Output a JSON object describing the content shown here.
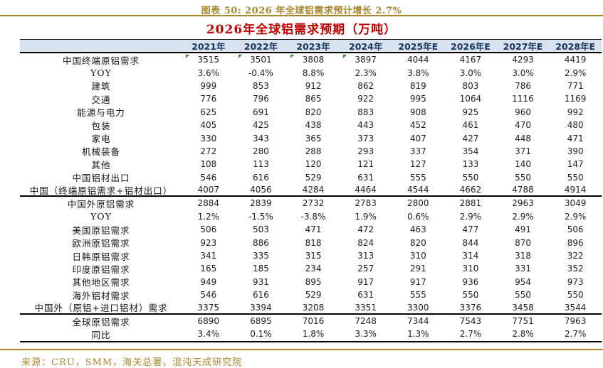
{
  "figure": {
    "caption": "图表 50: 2026 年全球铝需求预计增长 2.7%",
    "source": "来源：CRU，SMM，海关总署，混沌天成研究院"
  },
  "chart_data": {
    "type": "table",
    "title": "2026年全球铝需求预期（万吨）",
    "columns": [
      "2021年",
      "2022年",
      "2023年",
      "2024年",
      "2025年E",
      "2026年E",
      "2027年E",
      "2028年E"
    ],
    "rows": [
      {
        "label": "中国终端原铝需求",
        "values": [
          "3515",
          "3501",
          "3808",
          "3897",
          "4044",
          "4167",
          "4293",
          "4419"
        ],
        "flags": [
          true,
          true,
          true,
          true,
          false,
          false,
          false,
          false
        ]
      },
      {
        "label": "YOY",
        "values": [
          "3.6%",
          "-0.4%",
          "8.8%",
          "2.3%",
          "3.8%",
          "3.0%",
          "3.0%",
          "2.9%"
        ]
      },
      {
        "label": "建筑",
        "values": [
          "999",
          "853",
          "912",
          "862",
          "819",
          "803",
          "786",
          "771"
        ]
      },
      {
        "label": "交通",
        "values": [
          "776",
          "796",
          "865",
          "922",
          "995",
          "1064",
          "1116",
          "1169"
        ]
      },
      {
        "label": "能源与电力",
        "values": [
          "625",
          "691",
          "820",
          "883",
          "908",
          "925",
          "960",
          "992"
        ]
      },
      {
        "label": "包装",
        "values": [
          "405",
          "425",
          "438",
          "443",
          "452",
          "461",
          "470",
          "480"
        ]
      },
      {
        "label": "家电",
        "values": [
          "330",
          "343",
          "365",
          "373",
          "407",
          "427",
          "448",
          "471"
        ]
      },
      {
        "label": "机械装备",
        "values": [
          "272",
          "280",
          "288",
          "293",
          "337",
          "354",
          "371",
          "390"
        ]
      },
      {
        "label": "其他",
        "values": [
          "108",
          "113",
          "120",
          "121",
          "127",
          "133",
          "140",
          "147"
        ]
      },
      {
        "label": "中国铝材出口",
        "values": [
          "546",
          "616",
          "529",
          "631",
          "555",
          "550",
          "550",
          "550"
        ]
      },
      {
        "label": "中国（终端原铝需求+铝材出口）",
        "values": [
          "4007",
          "4056",
          "4284",
          "4464",
          "4544",
          "4662",
          "4788",
          "4914"
        ],
        "separator_after": true
      },
      {
        "label": "中国外原铝需求",
        "values": [
          "2884",
          "2839",
          "2732",
          "2783",
          "2800",
          "2881",
          "2963",
          "3049"
        ]
      },
      {
        "label": "YOY",
        "values": [
          "1.2%",
          "-1.5%",
          "-3.8%",
          "1.9%",
          "0.6%",
          "2.9%",
          "2.9%",
          "2.9%"
        ]
      },
      {
        "label": "美国原铝需求",
        "values": [
          "506",
          "503",
          "471",
          "472",
          "463",
          "477",
          "491",
          "506"
        ]
      },
      {
        "label": "欧洲原铝需求",
        "values": [
          "923",
          "886",
          "818",
          "824",
          "820",
          "844",
          "870",
          "896"
        ]
      },
      {
        "label": "日韩原铝需求",
        "values": [
          "341",
          "335",
          "315",
          "313",
          "310",
          "314",
          "318",
          "322"
        ]
      },
      {
        "label": "印度原铝需求",
        "values": [
          "165",
          "185",
          "234",
          "257",
          "291",
          "310",
          "331",
          "352"
        ]
      },
      {
        "label": "其他地区需求",
        "values": [
          "949",
          "931",
          "895",
          "917",
          "917",
          "936",
          "954",
          "973"
        ]
      },
      {
        "label": "海外铝材需求",
        "values": [
          "546",
          "616",
          "529",
          "631",
          "555",
          "550",
          "550",
          "550"
        ]
      },
      {
        "label": "中国外（原铝+进口铝材）需求",
        "values": [
          "3375",
          "3394",
          "3208",
          "3351",
          "3300",
          "3376",
          "3458",
          "3544"
        ],
        "separator_after": true
      },
      {
        "label": "全球原铝需求",
        "values": [
          "6890",
          "6895",
          "7016",
          "7248",
          "7344",
          "7543",
          "7751",
          "7963"
        ]
      },
      {
        "label": "同比",
        "values": [
          "3.4%",
          "0.1%",
          "1.8%",
          "3.3%",
          "1.3%",
          "2.7%",
          "2.8%",
          "2.7%"
        ]
      }
    ]
  },
  "colors": {
    "accent_gold": "#a8862c",
    "title_red": "#c00000",
    "header_navy": "#17375e",
    "header_bg": "#d9e2ef",
    "marker_green": "#2e8b2e"
  }
}
